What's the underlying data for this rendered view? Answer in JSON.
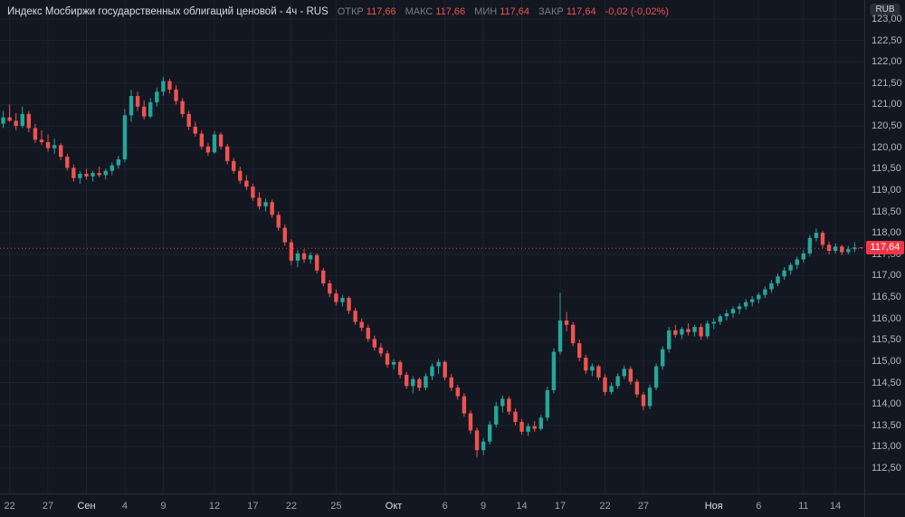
{
  "header": {
    "title": "Индекс Мосбиржи государственных облигаций ценовой - 4ч - RUS",
    "ohlc": {
      "open_label": "ОТКР",
      "open": "117,66",
      "high_label": "МАКС",
      "high": "117,66",
      "low_label": "МИН",
      "low": "117,64",
      "close_label": "ЗАКР",
      "close": "117,64"
    },
    "change": "-0,02 (-0,02%)"
  },
  "axis": {
    "currency": "RUB",
    "last_price_label": "117,64",
    "price_labels": [
      "123,00",
      "122,50",
      "122,00",
      "121,50",
      "121,00",
      "120,50",
      "120,00",
      "119,50",
      "119,00",
      "118,50",
      "118,00",
      "117,50",
      "117,00",
      "116,50",
      "116,00",
      "115,50",
      "115,00",
      "114,50",
      "114,00",
      "113,50",
      "113,00",
      "112,50"
    ]
  },
  "colors": {
    "background": "#131722",
    "grid": "#1e222d",
    "up": "#26a69a",
    "down": "#ef5350",
    "last": "#f23645",
    "axis_text": "#b2b5be"
  },
  "chart_data": {
    "type": "candlestick",
    "title": "Индекс Мосбиржи государственных облигаций ценовой",
    "interval": "4ч",
    "exchange": "RUS",
    "currency": "RUB",
    "price_range": [
      112.5,
      123.0
    ],
    "grid_step": 0.5,
    "last_price": 117.64,
    "open": 117.66,
    "high": 117.66,
    "low": 117.64,
    "close": 117.64,
    "change": -0.02,
    "change_pct": -0.02,
    "x_labels": [
      {
        "text": "22",
        "i": 1
      },
      {
        "text": "27",
        "i": 7
      },
      {
        "text": "Сен",
        "i": 13,
        "major": true
      },
      {
        "text": "4",
        "i": 19
      },
      {
        "text": "9",
        "i": 25
      },
      {
        "text": "12",
        "i": 33
      },
      {
        "text": "17",
        "i": 39
      },
      {
        "text": "22",
        "i": 45
      },
      {
        "text": "25",
        "i": 52
      },
      {
        "text": "Окт",
        "i": 61,
        "major": true
      },
      {
        "text": "6",
        "i": 69
      },
      {
        "text": "9",
        "i": 75
      },
      {
        "text": "14",
        "i": 81
      },
      {
        "text": "17",
        "i": 87
      },
      {
        "text": "22",
        "i": 94
      },
      {
        "text": "27",
        "i": 100
      },
      {
        "text": "Ноя",
        "i": 111,
        "major": true
      },
      {
        "text": "6",
        "i": 118
      },
      {
        "text": "11",
        "i": 125
      },
      {
        "text": "14",
        "i": 130
      }
    ],
    "candles": [
      [
        120.55,
        120.85,
        120.45,
        120.7
      ],
      [
        120.7,
        121.0,
        120.6,
        120.62
      ],
      [
        120.62,
        120.8,
        120.4,
        120.5
      ],
      [
        120.5,
        120.95,
        120.45,
        120.78
      ],
      [
        120.78,
        120.85,
        120.35,
        120.45
      ],
      [
        120.45,
        120.55,
        120.1,
        120.18
      ],
      [
        120.18,
        120.4,
        120.05,
        120.12
      ],
      [
        120.12,
        120.3,
        119.9,
        119.98
      ],
      [
        119.98,
        120.2,
        119.85,
        120.05
      ],
      [
        120.05,
        120.1,
        119.7,
        119.78
      ],
      [
        119.78,
        119.85,
        119.45,
        119.52
      ],
      [
        119.52,
        119.6,
        119.2,
        119.28
      ],
      [
        119.28,
        119.45,
        119.15,
        119.38
      ],
      [
        119.38,
        119.5,
        119.25,
        119.32
      ],
      [
        119.32,
        119.45,
        119.2,
        119.4
      ],
      [
        119.4,
        119.55,
        119.3,
        119.35
      ],
      [
        119.35,
        119.5,
        119.25,
        119.45
      ],
      [
        119.45,
        119.65,
        119.35,
        119.58
      ],
      [
        119.58,
        119.8,
        119.5,
        119.72
      ],
      [
        119.72,
        120.9,
        119.65,
        120.75
      ],
      [
        120.75,
        121.35,
        120.6,
        121.2
      ],
      [
        121.2,
        121.3,
        120.85,
        120.95
      ],
      [
        120.95,
        121.1,
        120.65,
        120.72
      ],
      [
        120.72,
        121.15,
        120.68,
        121.05
      ],
      [
        121.05,
        121.4,
        120.95,
        121.3
      ],
      [
        121.3,
        121.65,
        121.2,
        121.55
      ],
      [
        121.55,
        121.6,
        121.25,
        121.35
      ],
      [
        121.35,
        121.45,
        121.0,
        121.08
      ],
      [
        121.08,
        121.15,
        120.7,
        120.78
      ],
      [
        120.78,
        120.85,
        120.4,
        120.48
      ],
      [
        120.48,
        120.6,
        120.25,
        120.32
      ],
      [
        120.32,
        120.4,
        119.95,
        120.02
      ],
      [
        120.02,
        120.1,
        119.8,
        119.88
      ],
      [
        119.88,
        120.38,
        119.85,
        120.3
      ],
      [
        120.3,
        120.35,
        119.95,
        120.02
      ],
      [
        120.02,
        120.08,
        119.6,
        119.68
      ],
      [
        119.68,
        119.75,
        119.38,
        119.45
      ],
      [
        119.45,
        119.55,
        119.15,
        119.22
      ],
      [
        119.22,
        119.35,
        119.0,
        119.08
      ],
      [
        119.08,
        119.15,
        118.75,
        118.82
      ],
      [
        118.82,
        118.95,
        118.55,
        118.62
      ],
      [
        118.62,
        118.8,
        118.5,
        118.72
      ],
      [
        118.72,
        118.78,
        118.35,
        118.42
      ],
      [
        118.42,
        118.5,
        118.05,
        118.12
      ],
      [
        118.12,
        118.2,
        117.7,
        117.78
      ],
      [
        117.78,
        117.85,
        117.25,
        117.35
      ],
      [
        117.35,
        117.6,
        117.2,
        117.52
      ],
      [
        117.52,
        117.62,
        117.3,
        117.38
      ],
      [
        117.38,
        117.55,
        117.28,
        117.48
      ],
      [
        117.48,
        117.52,
        117.05,
        117.12
      ],
      [
        117.12,
        117.18,
        116.75,
        116.82
      ],
      [
        116.82,
        116.9,
        116.5,
        116.58
      ],
      [
        116.58,
        116.68,
        116.3,
        116.38
      ],
      [
        116.38,
        116.55,
        116.28,
        116.48
      ],
      [
        116.48,
        116.52,
        116.1,
        116.18
      ],
      [
        116.18,
        116.25,
        115.85,
        115.92
      ],
      [
        115.92,
        116.0,
        115.7,
        115.78
      ],
      [
        115.78,
        115.85,
        115.45,
        115.52
      ],
      [
        115.52,
        115.6,
        115.25,
        115.32
      ],
      [
        115.32,
        115.42,
        115.1,
        115.18
      ],
      [
        115.18,
        115.25,
        114.85,
        114.92
      ],
      [
        114.92,
        115.05,
        114.8,
        114.98
      ],
      [
        114.98,
        115.02,
        114.6,
        114.68
      ],
      [
        114.68,
        114.75,
        114.35,
        114.42
      ],
      [
        114.42,
        114.65,
        114.25,
        114.58
      ],
      [
        114.58,
        114.62,
        114.3,
        114.38
      ],
      [
        114.38,
        114.72,
        114.32,
        114.65
      ],
      [
        114.65,
        114.95,
        114.55,
        114.88
      ],
      [
        114.88,
        115.05,
        114.7,
        114.98
      ],
      [
        114.98,
        115.02,
        114.55,
        114.62
      ],
      [
        114.62,
        114.7,
        114.3,
        114.38
      ],
      [
        114.38,
        114.45,
        114.1,
        114.18
      ],
      [
        114.18,
        114.25,
        113.7,
        113.78
      ],
      [
        113.78,
        113.85,
        113.3,
        113.38
      ],
      [
        113.38,
        113.45,
        112.75,
        112.92
      ],
      [
        112.92,
        113.2,
        112.8,
        113.12
      ],
      [
        113.12,
        113.6,
        113.05,
        113.52
      ],
      [
        113.52,
        114.05,
        113.45,
        113.95
      ],
      [
        113.95,
        114.2,
        113.8,
        114.12
      ],
      [
        114.12,
        114.18,
        113.75,
        113.82
      ],
      [
        113.82,
        113.9,
        113.5,
        113.58
      ],
      [
        113.58,
        113.65,
        113.28,
        113.35
      ],
      [
        113.35,
        113.55,
        113.25,
        113.48
      ],
      [
        113.48,
        113.6,
        113.35,
        113.42
      ],
      [
        113.42,
        113.75,
        113.38,
        113.68
      ],
      [
        113.68,
        114.4,
        113.6,
        114.32
      ],
      [
        114.32,
        115.3,
        114.25,
        115.22
      ],
      [
        115.22,
        116.6,
        115.15,
        115.95
      ],
      [
        115.95,
        116.15,
        115.7,
        115.85
      ],
      [
        115.85,
        115.92,
        115.35,
        115.42
      ],
      [
        115.42,
        115.5,
        115.0,
        115.08
      ],
      [
        115.08,
        115.15,
        114.7,
        114.78
      ],
      [
        114.78,
        114.95,
        114.65,
        114.88
      ],
      [
        114.88,
        114.92,
        114.55,
        114.62
      ],
      [
        114.62,
        114.7,
        114.2,
        114.28
      ],
      [
        114.28,
        114.5,
        114.22,
        114.42
      ],
      [
        114.42,
        114.72,
        114.35,
        114.65
      ],
      [
        114.65,
        114.9,
        114.58,
        114.82
      ],
      [
        114.82,
        114.88,
        114.45,
        114.52
      ],
      [
        114.52,
        114.58,
        114.15,
        114.22
      ],
      [
        114.22,
        114.28,
        113.85,
        113.95
      ],
      [
        113.95,
        114.45,
        113.88,
        114.38
      ],
      [
        114.38,
        114.95,
        114.32,
        114.88
      ],
      [
        114.88,
        115.35,
        114.8,
        115.28
      ],
      [
        115.28,
        115.8,
        115.2,
        115.72
      ],
      [
        115.72,
        115.85,
        115.55,
        115.62
      ],
      [
        115.62,
        115.8,
        115.52,
        115.75
      ],
      [
        115.75,
        115.88,
        115.6,
        115.68
      ],
      [
        115.68,
        115.85,
        115.58,
        115.8
      ],
      [
        115.8,
        115.88,
        115.5,
        115.58
      ],
      [
        115.58,
        115.95,
        115.52,
        115.88
      ],
      [
        115.88,
        116.0,
        115.75,
        115.92
      ],
      [
        115.92,
        116.1,
        115.85,
        116.05
      ],
      [
        116.05,
        116.2,
        115.95,
        116.12
      ],
      [
        116.12,
        116.28,
        116.02,
        116.22
      ],
      [
        116.22,
        116.35,
        116.1,
        116.28
      ],
      [
        116.28,
        116.45,
        116.2,
        116.38
      ],
      [
        116.38,
        116.52,
        116.28,
        116.45
      ],
      [
        116.45,
        116.6,
        116.35,
        116.55
      ],
      [
        116.55,
        116.75,
        116.48,
        116.68
      ],
      [
        116.68,
        116.9,
        116.6,
        116.82
      ],
      [
        116.82,
        117.05,
        116.75,
        116.98
      ],
      [
        116.98,
        117.2,
        116.9,
        117.12
      ],
      [
        117.12,
        117.3,
        117.02,
        117.25
      ],
      [
        117.25,
        117.45,
        117.15,
        117.38
      ],
      [
        117.38,
        117.6,
        117.3,
        117.52
      ],
      [
        117.52,
        117.95,
        117.45,
        117.88
      ],
      [
        117.88,
        118.1,
        117.8,
        118.0
      ],
      [
        118.0,
        118.05,
        117.65,
        117.72
      ],
      [
        117.72,
        117.8,
        117.5,
        117.58
      ],
      [
        117.58,
        117.75,
        117.52,
        117.68
      ],
      [
        117.68,
        117.72,
        117.48,
        117.55
      ],
      [
        117.55,
        117.7,
        117.5,
        117.62
      ],
      [
        117.62,
        117.78,
        117.55,
        117.66
      ],
      [
        117.66,
        117.66,
        117.64,
        117.64
      ]
    ]
  }
}
